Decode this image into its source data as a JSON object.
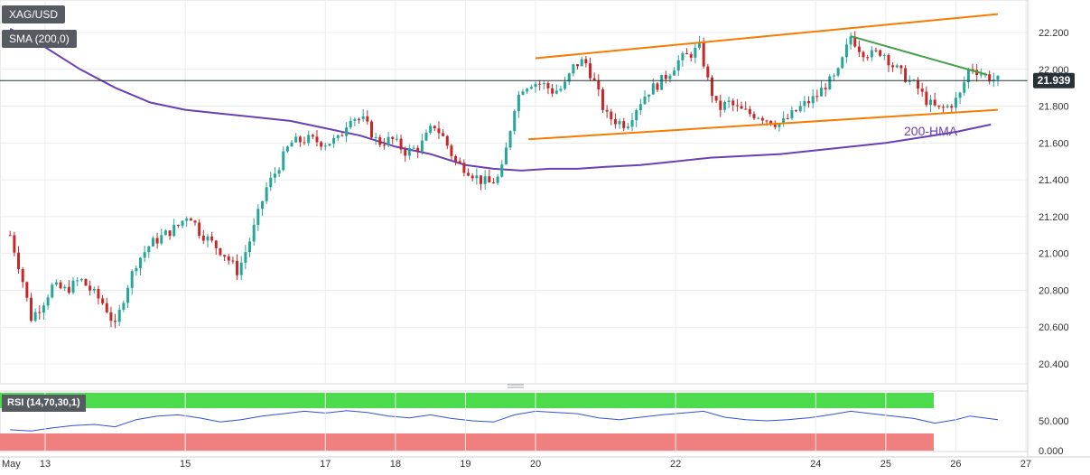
{
  "header": {
    "symbol": "XAG/USD",
    "sma_label": "SMA (200,0)"
  },
  "price_tag": "21.939",
  "annotation_hma": "200-HMA",
  "rsi_label": "RSI (14,70,30,1)",
  "colors": {
    "bull": "#26a69a",
    "bear": "#c62828",
    "hma": "#6a3fb5",
    "trend_orange": "#f57c00",
    "trend_green": "#43a047",
    "rsi_line": "#2f52d6",
    "rsi_overbought_fill": "#4cdb4c",
    "rsi_oversold_fill": "#f07f7f"
  },
  "chart_data": {
    "type": "line",
    "title": "XAG/USD",
    "price_axis": {
      "ylim": [
        20.3,
        22.4
      ],
      "ticks": [
        22.2,
        22.0,
        21.8,
        21.6,
        21.4,
        21.2,
        21.0,
        20.8,
        20.6,
        20.4
      ],
      "tick_labels": [
        "22.200",
        "22.000",
        "21.800",
        "21.600",
        "21.400",
        "21.200",
        "21.000",
        "20.800",
        "20.600",
        "20.400"
      ],
      "current_price": 21.939
    },
    "x_axis": {
      "xlim": [
        12.5,
        27.0
      ],
      "tick_labels": [
        {
          "x": 12.5,
          "label": "May"
        },
        {
          "x": 13,
          "label": "13"
        },
        {
          "x": 15,
          "label": "15"
        },
        {
          "x": 17,
          "label": "17"
        },
        {
          "x": 18,
          "label": "18"
        },
        {
          "x": 19,
          "label": "19"
        },
        {
          "x": 20,
          "label": "20"
        },
        {
          "x": 22,
          "label": "22"
        },
        {
          "x": 24,
          "label": "24"
        },
        {
          "x": 25,
          "label": "25"
        },
        {
          "x": 26,
          "label": "26"
        },
        {
          "x": 27,
          "label": "27"
        }
      ]
    },
    "price_path": [
      [
        12.5,
        21.1
      ],
      [
        12.65,
        20.9
      ],
      [
        12.8,
        20.65
      ],
      [
        12.95,
        20.72
      ],
      [
        13.1,
        20.82
      ],
      [
        13.3,
        20.8
      ],
      [
        13.5,
        20.86
      ],
      [
        13.7,
        20.78
      ],
      [
        13.85,
        20.72
      ],
      [
        14.0,
        20.6
      ],
      [
        14.15,
        20.8
      ],
      [
        14.3,
        20.95
      ],
      [
        14.5,
        21.05
      ],
      [
        14.7,
        21.1
      ],
      [
        14.9,
        21.15
      ],
      [
        15.05,
        21.22
      ],
      [
        15.2,
        21.12
      ],
      [
        15.4,
        21.05
      ],
      [
        15.55,
        21.0
      ],
      [
        15.75,
        20.9
      ],
      [
        15.95,
        21.1
      ],
      [
        16.15,
        21.35
      ],
      [
        16.3,
        21.45
      ],
      [
        16.5,
        21.6
      ],
      [
        16.75,
        21.62
      ],
      [
        17.0,
        21.6
      ],
      [
        17.2,
        21.62
      ],
      [
        17.35,
        21.75
      ],
      [
        17.55,
        21.72
      ],
      [
        17.75,
        21.6
      ],
      [
        17.95,
        21.62
      ],
      [
        18.15,
        21.55
      ],
      [
        18.35,
        21.58
      ],
      [
        18.55,
        21.7
      ],
      [
        18.7,
        21.62
      ],
      [
        18.85,
        21.5
      ],
      [
        19.05,
        21.45
      ],
      [
        19.2,
        21.4
      ],
      [
        19.35,
        21.38
      ],
      [
        19.5,
        21.42
      ],
      [
        19.6,
        21.6
      ],
      [
        19.7,
        21.8
      ],
      [
        19.8,
        21.9
      ],
      [
        19.95,
        21.93
      ],
      [
        20.1,
        21.92
      ],
      [
        20.25,
        21.88
      ],
      [
        20.4,
        21.9
      ],
      [
        20.55,
        22.02
      ],
      [
        20.7,
        22.05
      ],
      [
        20.85,
        21.92
      ],
      [
        21.0,
        21.75
      ],
      [
        21.15,
        21.72
      ],
      [
        21.3,
        21.7
      ],
      [
        21.45,
        21.8
      ],
      [
        21.6,
        21.88
      ],
      [
        21.75,
        21.92
      ],
      [
        21.9,
        21.98
      ],
      [
        22.05,
        22.05
      ],
      [
        22.2,
        22.08
      ],
      [
        22.35,
        22.12
      ],
      [
        22.45,
        21.95
      ],
      [
        22.6,
        21.78
      ],
      [
        22.75,
        21.82
      ],
      [
        22.9,
        21.78
      ],
      [
        23.05,
        21.76
      ],
      [
        23.2,
        21.75
      ],
      [
        23.35,
        21.72
      ],
      [
        23.5,
        21.7
      ],
      [
        23.65,
        21.75
      ],
      [
        23.8,
        21.8
      ],
      [
        24.0,
        21.85
      ],
      [
        24.15,
        21.92
      ],
      [
        24.3,
        21.96
      ],
      [
        24.5,
        22.18
      ],
      [
        24.65,
        22.1
      ],
      [
        24.8,
        22.08
      ],
      [
        24.95,
        22.1
      ],
      [
        25.1,
        22.02
      ],
      [
        25.3,
        21.95
      ],
      [
        25.45,
        21.9
      ],
      [
        25.6,
        21.82
      ],
      [
        25.75,
        21.78
      ],
      [
        25.9,
        21.8
      ],
      [
        26.05,
        21.85
      ],
      [
        26.2,
        22.02
      ],
      [
        26.35,
        21.98
      ],
      [
        26.5,
        21.95
      ],
      [
        26.6,
        21.94
      ]
    ],
    "series": [
      {
        "name": "SMA (200,0)",
        "points": [
          [
            12.5,
            22.22
          ],
          [
            13.0,
            22.12
          ],
          [
            13.5,
            22.0
          ],
          [
            14.0,
            21.9
          ],
          [
            14.5,
            21.82
          ],
          [
            15.0,
            21.78
          ],
          [
            15.5,
            21.76
          ],
          [
            16.0,
            21.74
          ],
          [
            16.5,
            21.72
          ],
          [
            17.0,
            21.68
          ],
          [
            17.5,
            21.64
          ],
          [
            18.0,
            21.58
          ],
          [
            18.5,
            21.54
          ],
          [
            19.0,
            21.48
          ],
          [
            19.4,
            21.46
          ],
          [
            19.8,
            21.45
          ],
          [
            20.2,
            21.46
          ],
          [
            20.6,
            21.46
          ],
          [
            21.0,
            21.47
          ],
          [
            21.5,
            21.48
          ],
          [
            22.0,
            21.5
          ],
          [
            22.5,
            21.52
          ],
          [
            23.0,
            21.53
          ],
          [
            23.5,
            21.54
          ],
          [
            24.0,
            21.56
          ],
          [
            24.5,
            21.58
          ],
          [
            25.0,
            21.6
          ],
          [
            25.5,
            21.63
          ],
          [
            26.0,
            21.66
          ],
          [
            26.5,
            21.7
          ]
        ]
      }
    ],
    "trendlines": [
      {
        "color_key": "trend_orange",
        "from": [
          20.0,
          22.06
        ],
        "to": [
          26.6,
          22.3
        ]
      },
      {
        "color_key": "trend_orange",
        "from": [
          19.9,
          21.62
        ],
        "to": [
          26.6,
          21.78
        ]
      },
      {
        "color_key": "trend_green",
        "from": [
          24.5,
          22.18
        ],
        "to": [
          26.45,
          21.97
        ]
      }
    ],
    "rsi": {
      "ylim": [
        0,
        100
      ],
      "ticks": [
        50,
        0
      ],
      "tick_labels": [
        "50.000",
        "0.000"
      ],
      "overbought": 70,
      "oversold": 30,
      "values": [
        [
          12.5,
          35
        ],
        [
          12.8,
          33
        ],
        [
          13.1,
          38
        ],
        [
          13.4,
          42
        ],
        [
          13.7,
          44
        ],
        [
          14.0,
          40
        ],
        [
          14.3,
          52
        ],
        [
          14.6,
          58
        ],
        [
          14.9,
          60
        ],
        [
          15.2,
          55
        ],
        [
          15.5,
          48
        ],
        [
          15.8,
          52
        ],
        [
          16.1,
          58
        ],
        [
          16.4,
          62
        ],
        [
          16.7,
          66
        ],
        [
          17.0,
          63
        ],
        [
          17.3,
          67
        ],
        [
          17.6,
          64
        ],
        [
          17.9,
          58
        ],
        [
          18.2,
          55
        ],
        [
          18.5,
          60
        ],
        [
          18.8,
          54
        ],
        [
          19.1,
          50
        ],
        [
          19.4,
          48
        ],
        [
          19.7,
          60
        ],
        [
          20.0,
          66
        ],
        [
          20.3,
          64
        ],
        [
          20.6,
          62
        ],
        [
          20.9,
          55
        ],
        [
          21.2,
          52
        ],
        [
          21.5,
          56
        ],
        [
          21.8,
          60
        ],
        [
          22.1,
          63
        ],
        [
          22.4,
          66
        ],
        [
          22.7,
          56
        ],
        [
          23.0,
          52
        ],
        [
          23.3,
          50
        ],
        [
          23.6,
          52
        ],
        [
          23.9,
          55
        ],
        [
          24.2,
          60
        ],
        [
          24.5,
          66
        ],
        [
          24.8,
          62
        ],
        [
          25.1,
          58
        ],
        [
          25.4,
          54
        ],
        [
          25.7,
          46
        ],
        [
          26.0,
          52
        ],
        [
          26.2,
          58
        ],
        [
          26.4,
          55
        ],
        [
          26.6,
          52
        ]
      ]
    }
  }
}
